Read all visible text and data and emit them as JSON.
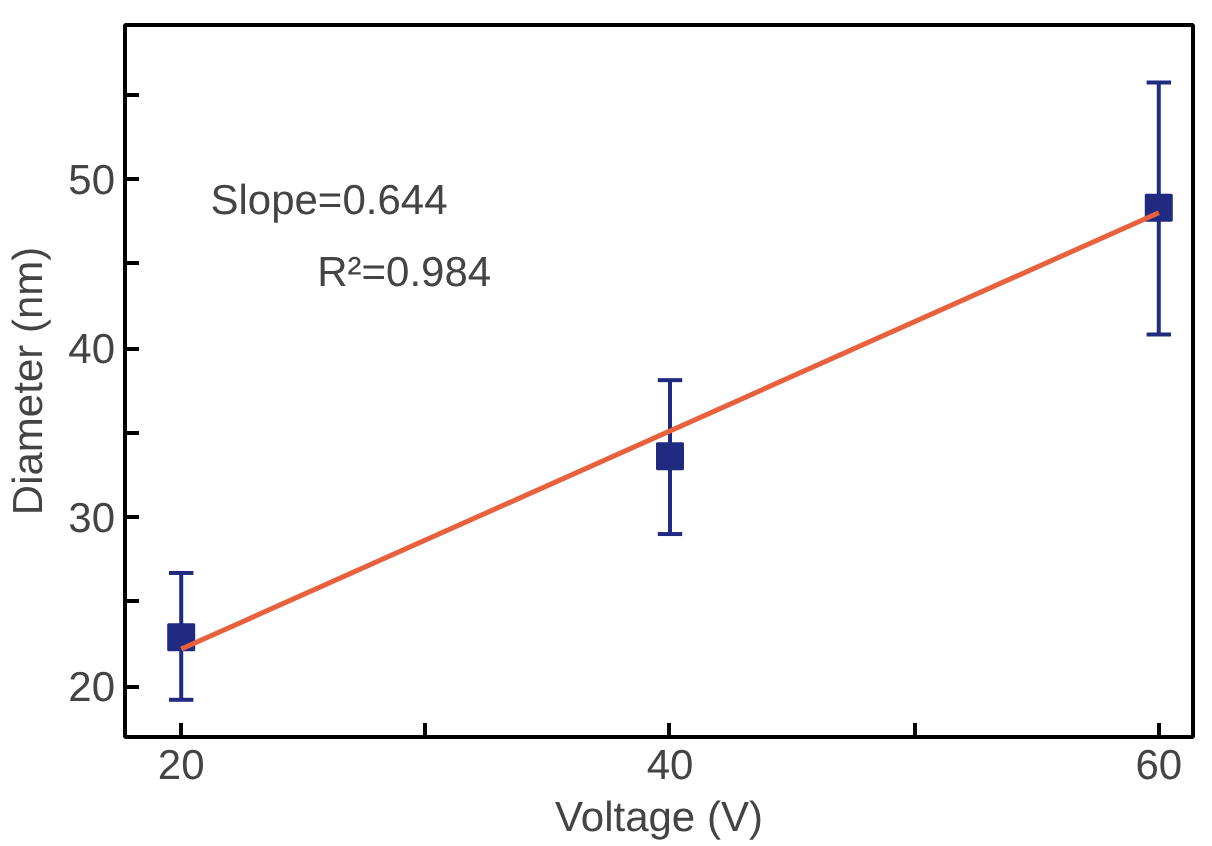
{
  "chart_data": {
    "type": "scatter",
    "xlabel": "Voltage (V)",
    "ylabel": "Diameter (nm)",
    "xlim": [
      17.7,
      61.4
    ],
    "ylim": [
      17.0,
      59.1
    ],
    "xticks": [
      20,
      {
        "value": 30,
        "label": null
      },
      40,
      {
        "value": 50,
        "label": null
      },
      60
    ],
    "yticks": [
      20,
      {
        "value": 25,
        "label": null
      },
      30,
      {
        "value": 35,
        "label": null
      },
      40,
      {
        "value": 45,
        "label": null
      },
      50,
      {
        "value": 55,
        "label": null
      }
    ],
    "grid": false,
    "series": [
      {
        "marker": "square",
        "color": "#1f2a80",
        "x": [
          20,
          40,
          60
        ],
        "values": [
          22.9,
          33.6,
          48.3
        ],
        "errors": [
          [
            19.2,
            26.7
          ],
          [
            29.0,
            38.1
          ],
          [
            40.8,
            55.7
          ]
        ]
      },
      {
        "type": "line",
        "color": "#e8603c",
        "x": [
          20,
          60
        ],
        "values": [
          22.2,
          48.0
        ],
        "line_style": "solid"
      }
    ],
    "annotations": [
      "Slope=0.644",
      "R²=0.984"
    ]
  }
}
